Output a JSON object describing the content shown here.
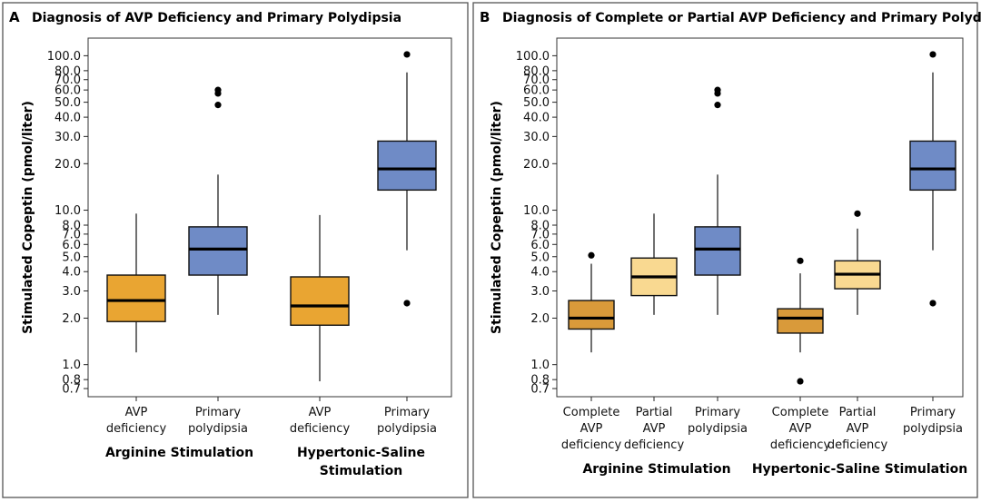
{
  "chart_data": [
    {
      "type": "box",
      "panel_letter": "A",
      "title": "Diagnosis of AVP Deficiency and Primary Polydipsia",
      "ylabel": "Stimulated Copeptin (pmol/liter)",
      "yscale": "log",
      "ylim": [
        0.62,
        130
      ],
      "yticks": [
        0.7,
        0.8,
        1.0,
        2.0,
        3.0,
        4.0,
        5.0,
        6.0,
        7.0,
        8.0,
        10.0,
        20.0,
        30.0,
        40.0,
        50.0,
        60.0,
        70.0,
        80.0,
        100.0
      ],
      "ytick_labels": [
        "0.7",
        "0.8",
        "1.0",
        "2.0",
        "3.0",
        "4.0",
        "5.0",
        "6.0",
        "7.0",
        "8.0",
        "10.0",
        "20.0",
        "30.0",
        "40.0",
        "50.0",
        "60.0",
        "70.0",
        "80.0",
        "100.0"
      ],
      "grid": true,
      "groups": [
        {
          "label_lines": [
            "Arginine Stimulation"
          ],
          "boxes": [
            {
              "label_lines": [
                "AVP",
                "deficiency"
              ],
              "color": "#E9A532",
              "whisker_low": 1.2,
              "q1": 1.9,
              "median": 2.6,
              "q3": 3.8,
              "whisker_high": 9.5,
              "outliers": []
            },
            {
              "label_lines": [
                "Primary",
                "polydipsia"
              ],
              "color": "#6F8BC6",
              "whisker_low": 2.1,
              "q1": 3.8,
              "median": 5.6,
              "q3": 7.8,
              "whisker_high": 17,
              "outliers": [
                48,
                57,
                60
              ]
            }
          ]
        },
        {
          "label_lines": [
            "Hypertonic-Saline",
            "Stimulation"
          ],
          "boxes": [
            {
              "label_lines": [
                "AVP",
                "deficiency"
              ],
              "color": "#E9A532",
              "whisker_low": 0.78,
              "q1": 1.8,
              "median": 2.4,
              "q3": 3.7,
              "whisker_high": 9.3,
              "outliers": []
            },
            {
              "label_lines": [
                "Primary",
                "polydipsia"
              ],
              "color": "#6F8BC6",
              "whisker_low": 5.5,
              "q1": 13.5,
              "median": 18.5,
              "q3": 28,
              "whisker_high": 78,
              "outliers": [
                2.5,
                102
              ]
            }
          ]
        }
      ]
    },
    {
      "type": "box",
      "panel_letter": "B",
      "title": "Diagnosis of Complete or Partial AVP Deficiency and Primary Polydipsia",
      "ylabel": "Stimulated Copeptin (pmol/liter)",
      "yscale": "log",
      "ylim": [
        0.62,
        130
      ],
      "yticks": [
        0.7,
        0.8,
        1.0,
        2.0,
        3.0,
        4.0,
        5.0,
        6.0,
        7.0,
        8.0,
        10.0,
        20.0,
        30.0,
        40.0,
        50.0,
        60.0,
        70.0,
        80.0,
        100.0
      ],
      "ytick_labels": [
        "0.7",
        "0.8",
        "1.0",
        "2.0",
        "3.0",
        "4.0",
        "5.0",
        "6.0",
        "7.0",
        "8.0",
        "10.0",
        "20.0",
        "30.0",
        "40.0",
        "50.0",
        "60.0",
        "70.0",
        "80.0",
        "100.0"
      ],
      "grid": true,
      "groups": [
        {
          "label_lines": [
            "Arginine Stimulation"
          ],
          "boxes": [
            {
              "label_lines": [
                "Complete",
                "AVP",
                "deficiency"
              ],
              "color": "#D99A3A",
              "whisker_low": 1.2,
              "q1": 1.7,
              "median": 2.0,
              "q3": 2.6,
              "whisker_high": 4.5,
              "outliers": [
                5.1
              ]
            },
            {
              "label_lines": [
                "Partial",
                "AVP",
                "deficiency"
              ],
              "color": "#F9D991",
              "whisker_low": 2.1,
              "q1": 2.8,
              "median": 3.7,
              "q3": 4.9,
              "whisker_high": 9.5,
              "outliers": []
            },
            {
              "label_lines": [
                "Primary",
                "polydipsia"
              ],
              "color": "#6F8BC6",
              "whisker_low": 2.1,
              "q1": 3.8,
              "median": 5.6,
              "q3": 7.8,
              "whisker_high": 17,
              "outliers": [
                48,
                57,
                60
              ]
            }
          ]
        },
        {
          "label_lines": [
            "Hypertonic-Saline Stimulation"
          ],
          "boxes": [
            {
              "label_lines": [
                "Complete",
                "AVP",
                "deficiency"
              ],
              "color": "#D99A3A",
              "whisker_low": 1.2,
              "q1": 1.6,
              "median": 2.0,
              "q3": 2.3,
              "whisker_high": 3.9,
              "outliers": [
                0.78,
                4.7
              ]
            },
            {
              "label_lines": [
                "Partial",
                "AVP",
                "deficiency"
              ],
              "color": "#F9D991",
              "whisker_low": 2.1,
              "q1": 3.1,
              "median": 3.85,
              "q3": 4.7,
              "whisker_high": 7.6,
              "outliers": [
                9.5
              ]
            },
            {
              "label_lines": [
                "Primary",
                "polydipsia"
              ],
              "color": "#6F8BC6",
              "whisker_low": 5.5,
              "q1": 13.5,
              "median": 18.5,
              "q3": 28,
              "whisker_high": 78,
              "outliers": [
                2.5,
                102
              ]
            }
          ]
        }
      ]
    }
  ]
}
